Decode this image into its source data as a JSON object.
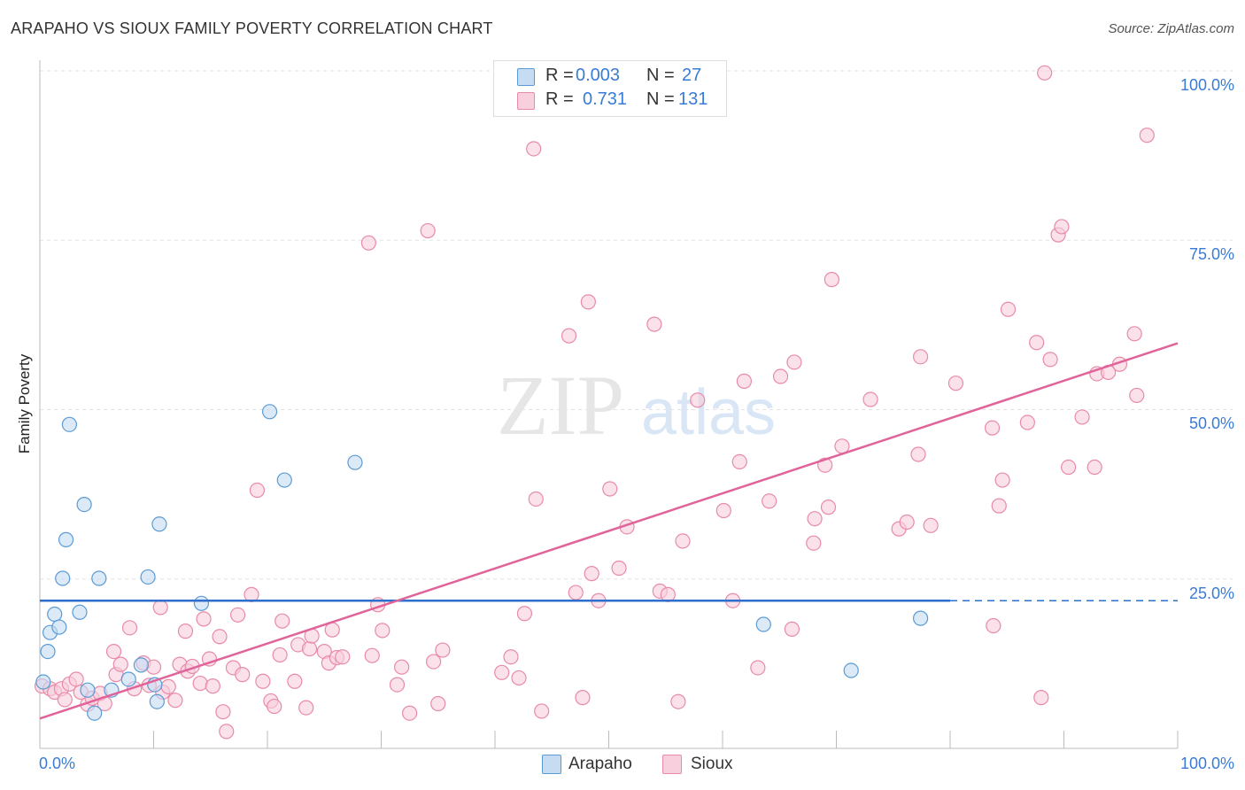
{
  "header": {
    "title": "ARAPAHO VS SIOUX FAMILY POVERTY CORRELATION CHART",
    "source": "Source: ZipAtlas.com"
  },
  "watermark": {
    "zip": "ZIP",
    "atlas": "atlas"
  },
  "stats": {
    "rows": [
      {
        "r_label": "R =",
        "r_value": "0.003",
        "n_label": "N =",
        "n_value": "27"
      },
      {
        "r_label": "R =",
        "r_value": "0.731",
        "n_label": "N =",
        "n_value": "131"
      }
    ]
  },
  "colors": {
    "arapaho": "#5b9bd5",
    "arapaho_fill": "#c5dcf3",
    "arapaho_line": "#2f6fcc",
    "sioux": "#e88aa8",
    "sioux_fill": "#f8cfdc",
    "sioux_line": "#e0649a",
    "tick_text": "#3a7bd5",
    "grid": "#e3e3e3"
  },
  "chart_data": {
    "type": "scatter",
    "title": "ARAPAHO VS SIOUX FAMILY POVERTY CORRELATION CHART",
    "xlabel": "",
    "ylabel": "Family Poverty",
    "xlim": [
      0,
      100
    ],
    "ylim": [
      0,
      100
    ],
    "x_tick_labels": [
      "0.0%",
      "100.0%"
    ],
    "y_tick_labels": [
      "100.0%",
      "75.0%",
      "50.0%",
      "25.0%"
    ],
    "y_ticks": [
      100,
      75,
      50,
      25
    ],
    "grid": true,
    "legend_position": "bottom-center",
    "series": [
      {
        "name": "Arapaho",
        "color": "#5b9bd5",
        "R": 0.003,
        "N": 27,
        "trend": {
          "x0": 0,
          "y0": 21.8,
          "x1": 80,
          "y1": 21.8,
          "dashed_to": 100
        },
        "points": [
          [
            0.3,
            9.8
          ],
          [
            0.7,
            14.3
          ],
          [
            0.9,
            17.1
          ],
          [
            1.3,
            19.8
          ],
          [
            1.7,
            17.9
          ],
          [
            2.0,
            25.1
          ],
          [
            2.3,
            30.8
          ],
          [
            2.6,
            47.8
          ],
          [
            3.5,
            20.1
          ],
          [
            3.9,
            36.0
          ],
          [
            4.2,
            8.6
          ],
          [
            4.8,
            5.2
          ],
          [
            5.2,
            25.1
          ],
          [
            6.3,
            8.6
          ],
          [
            7.8,
            10.2
          ],
          [
            8.9,
            12.3
          ],
          [
            9.5,
            25.3
          ],
          [
            10.1,
            9.4
          ],
          [
            10.3,
            6.9
          ],
          [
            10.5,
            33.1
          ],
          [
            14.2,
            21.4
          ],
          [
            20.2,
            49.7
          ],
          [
            21.5,
            39.6
          ],
          [
            27.7,
            42.2
          ],
          [
            63.6,
            18.3
          ],
          [
            71.3,
            11.5
          ],
          [
            77.4,
            19.2
          ]
        ]
      },
      {
        "name": "Sioux",
        "color": "#e88aa8",
        "R": 0.731,
        "N": 131,
        "trend": {
          "x0": 0,
          "y0": 4.4,
          "x1": 100,
          "y1": 59.8
        },
        "points": [
          [
            0.2,
            9.2
          ],
          [
            0.9,
            8.8
          ],
          [
            1.3,
            8.3
          ],
          [
            1.9,
            8.8
          ],
          [
            2.2,
            7.2
          ],
          [
            2.6,
            9.5
          ],
          [
            3.2,
            10.2
          ],
          [
            3.6,
            8.3
          ],
          [
            4.2,
            6.5
          ],
          [
            4.6,
            7.4
          ],
          [
            5.3,
            8.1
          ],
          [
            5.7,
            6.6
          ],
          [
            6.5,
            14.3
          ],
          [
            6.7,
            10.9
          ],
          [
            7.1,
            12.4
          ],
          [
            7.9,
            17.8
          ],
          [
            8.3,
            8.8
          ],
          [
            9.1,
            12.6
          ],
          [
            9.6,
            9.3
          ],
          [
            10.0,
            12.0
          ],
          [
            10.6,
            20.8
          ],
          [
            10.8,
            8.3
          ],
          [
            11.3,
            9.1
          ],
          [
            11.9,
            7.1
          ],
          [
            12.3,
            12.4
          ],
          [
            12.8,
            17.3
          ],
          [
            13.0,
            11.4
          ],
          [
            13.4,
            12.1
          ],
          [
            14.1,
            9.6
          ],
          [
            14.4,
            19.1
          ],
          [
            14.9,
            13.2
          ],
          [
            15.2,
            9.2
          ],
          [
            15.8,
            16.5
          ],
          [
            16.1,
            5.4
          ],
          [
            16.4,
            2.5
          ],
          [
            17.0,
            11.9
          ],
          [
            17.4,
            19.7
          ],
          [
            17.8,
            10.9
          ],
          [
            18.6,
            22.7
          ],
          [
            19.1,
            38.1
          ],
          [
            19.6,
            9.9
          ],
          [
            20.3,
            7.0
          ],
          [
            20.6,
            6.2
          ],
          [
            21.1,
            13.8
          ],
          [
            21.3,
            18.8
          ],
          [
            22.4,
            9.9
          ],
          [
            22.7,
            15.3
          ],
          [
            23.4,
            6.0
          ],
          [
            23.7,
            14.7
          ],
          [
            23.9,
            16.6
          ],
          [
            25.0,
            14.3
          ],
          [
            25.4,
            12.6
          ],
          [
            25.7,
            17.5
          ],
          [
            26.1,
            13.4
          ],
          [
            26.6,
            13.5
          ],
          [
            28.9,
            74.6
          ],
          [
            29.2,
            13.7
          ],
          [
            29.7,
            21.2
          ],
          [
            30.1,
            17.4
          ],
          [
            31.4,
            9.4
          ],
          [
            31.8,
            12.0
          ],
          [
            32.5,
            5.2
          ],
          [
            34.1,
            76.4
          ],
          [
            34.6,
            12.8
          ],
          [
            35.0,
            6.6
          ],
          [
            35.4,
            14.5
          ],
          [
            40.6,
            11.2
          ],
          [
            41.4,
            13.5
          ],
          [
            42.1,
            10.4
          ],
          [
            42.6,
            19.9
          ],
          [
            43.4,
            88.5
          ],
          [
            43.6,
            36.8
          ],
          [
            44.1,
            5.5
          ],
          [
            46.5,
            60.9
          ],
          [
            47.1,
            23.0
          ],
          [
            47.7,
            7.5
          ],
          [
            48.2,
            65.9
          ],
          [
            48.5,
            25.8
          ],
          [
            49.1,
            21.8
          ],
          [
            50.1,
            38.3
          ],
          [
            50.9,
            26.6
          ],
          [
            51.6,
            32.7
          ],
          [
            54.0,
            62.6
          ],
          [
            54.5,
            23.2
          ],
          [
            55.2,
            22.7
          ],
          [
            56.1,
            6.9
          ],
          [
            56.5,
            30.6
          ],
          [
            57.8,
            51.4
          ],
          [
            60.1,
            35.1
          ],
          [
            60.9,
            21.8
          ],
          [
            61.5,
            42.3
          ],
          [
            61.9,
            54.2
          ],
          [
            63.1,
            11.9
          ],
          [
            64.1,
            36.5
          ],
          [
            65.1,
            54.9
          ],
          [
            66.1,
            17.6
          ],
          [
            66.3,
            57.0
          ],
          [
            68.0,
            30.3
          ],
          [
            68.1,
            33.9
          ],
          [
            69.0,
            41.8
          ],
          [
            69.3,
            35.6
          ],
          [
            69.6,
            69.2
          ],
          [
            70.5,
            44.6
          ],
          [
            73.0,
            51.5
          ],
          [
            75.5,
            32.4
          ],
          [
            76.2,
            33.4
          ],
          [
            77.2,
            43.4
          ],
          [
            77.4,
            57.8
          ],
          [
            78.3,
            32.9
          ],
          [
            80.5,
            53.9
          ],
          [
            83.7,
            47.3
          ],
          [
            83.8,
            18.1
          ],
          [
            84.3,
            35.8
          ],
          [
            84.6,
            39.6
          ],
          [
            85.1,
            64.8
          ],
          [
            86.8,
            48.1
          ],
          [
            87.6,
            59.9
          ],
          [
            88.0,
            7.5
          ],
          [
            88.3,
            99.7
          ],
          [
            88.8,
            57.4
          ],
          [
            89.5,
            75.8
          ],
          [
            89.8,
            77.0
          ],
          [
            90.4,
            41.5
          ],
          [
            91.6,
            48.9
          ],
          [
            92.7,
            41.5
          ],
          [
            92.9,
            55.3
          ],
          [
            93.9,
            55.5
          ],
          [
            94.9,
            56.7
          ],
          [
            96.2,
            61.2
          ],
          [
            96.4,
            52.1
          ],
          [
            97.3,
            90.5
          ]
        ]
      }
    ]
  },
  "legend": {
    "items": [
      {
        "label": "Arapaho"
      },
      {
        "label": "Sioux"
      }
    ]
  }
}
